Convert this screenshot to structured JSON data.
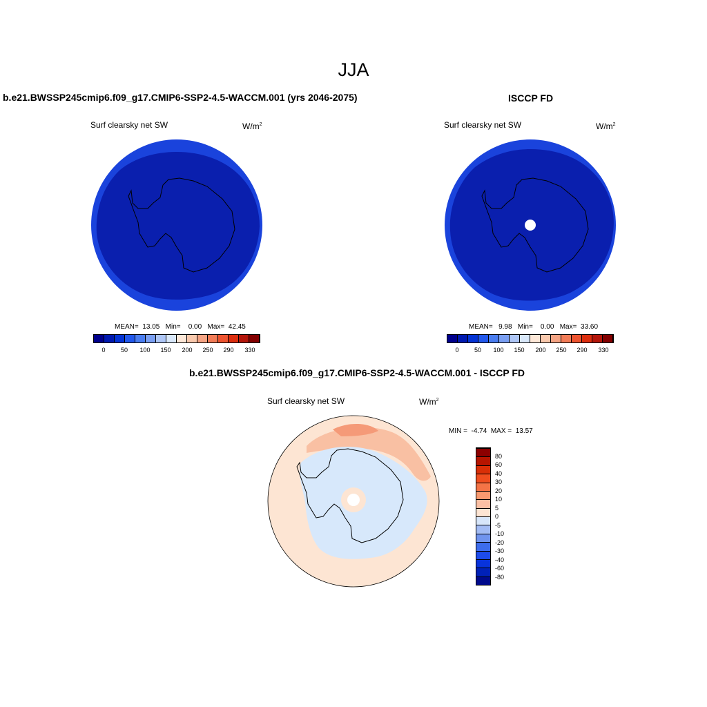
{
  "title": "JJA",
  "panels": [
    {
      "header": "b.e21.BWSSP245cmip6.f09_g17.CMIP6-SSP2-4.5-WACCM.001 (yrs 2046-2075)",
      "variable": "Surf clearsky net SW",
      "units_base": "W/m",
      "units_exp": "2",
      "stats": "MEAN=  13.05   Min=    0.00   Max=  42.45",
      "mean": 13.05,
      "min": 0.0,
      "max": 42.45
    },
    {
      "header": "ISCCP FD",
      "variable": "Surf clearsky net SW",
      "units_base": "W/m",
      "units_exp": "2",
      "stats": "MEAN=   9.98   Min=    0.00   Max=  33.60",
      "mean": 9.98,
      "min": 0.0,
      "max": 33.6
    }
  ],
  "diff_panel": {
    "header": "b.e21.BWSSP245cmip6.f09_g17.CMIP6-SSP2-4.5-WACCM.001 - ISCCP FD",
    "variable": "Surf clearsky net SW",
    "units_base": "W/m",
    "units_exp": "2",
    "minmax": "MIN =  -4.74  MAX =  13.57",
    "min": -4.74,
    "max": 13.57
  },
  "colorbar_abs": {
    "colors": [
      "#00008c",
      "#0019b0",
      "#0433d4",
      "#2258ec",
      "#4a7df0",
      "#7a9ff2",
      "#aec6f6",
      "#d9e8fa",
      "#fde8d8",
      "#f9c9ad",
      "#f5a484",
      "#f27c57",
      "#ee5430",
      "#dc2e0e",
      "#b4160a",
      "#830000"
    ],
    "tick_labels": [
      "0",
      "50",
      "100",
      "150",
      "200",
      "250",
      "290",
      "330"
    ]
  },
  "colorbar_diff": {
    "colors": [
      "#000a8c",
      "#0021b8",
      "#0833dc",
      "#1d4bec",
      "#3d6ded",
      "#7094ee",
      "#a3bcf4",
      "#d7e6fa",
      "#fde5d3",
      "#fbc0a4",
      "#f8996f",
      "#f57446",
      "#f04e1f",
      "#d92f07",
      "#b61500",
      "#8c0000"
    ],
    "tick_labels": [
      "80",
      "60",
      "40",
      "30",
      "20",
      "10",
      "5",
      "0",
      "-5",
      "-10",
      "-20",
      "-30",
      "-40",
      "-60",
      "-80"
    ]
  },
  "colors": {
    "deep_blue": "#0a1fae",
    "ring_blue": "#1a43dc",
    "diff_pale_blue": "#d7e8fb",
    "diff_peach": "#fde5d3",
    "diff_salmon": "#f8b697"
  }
}
